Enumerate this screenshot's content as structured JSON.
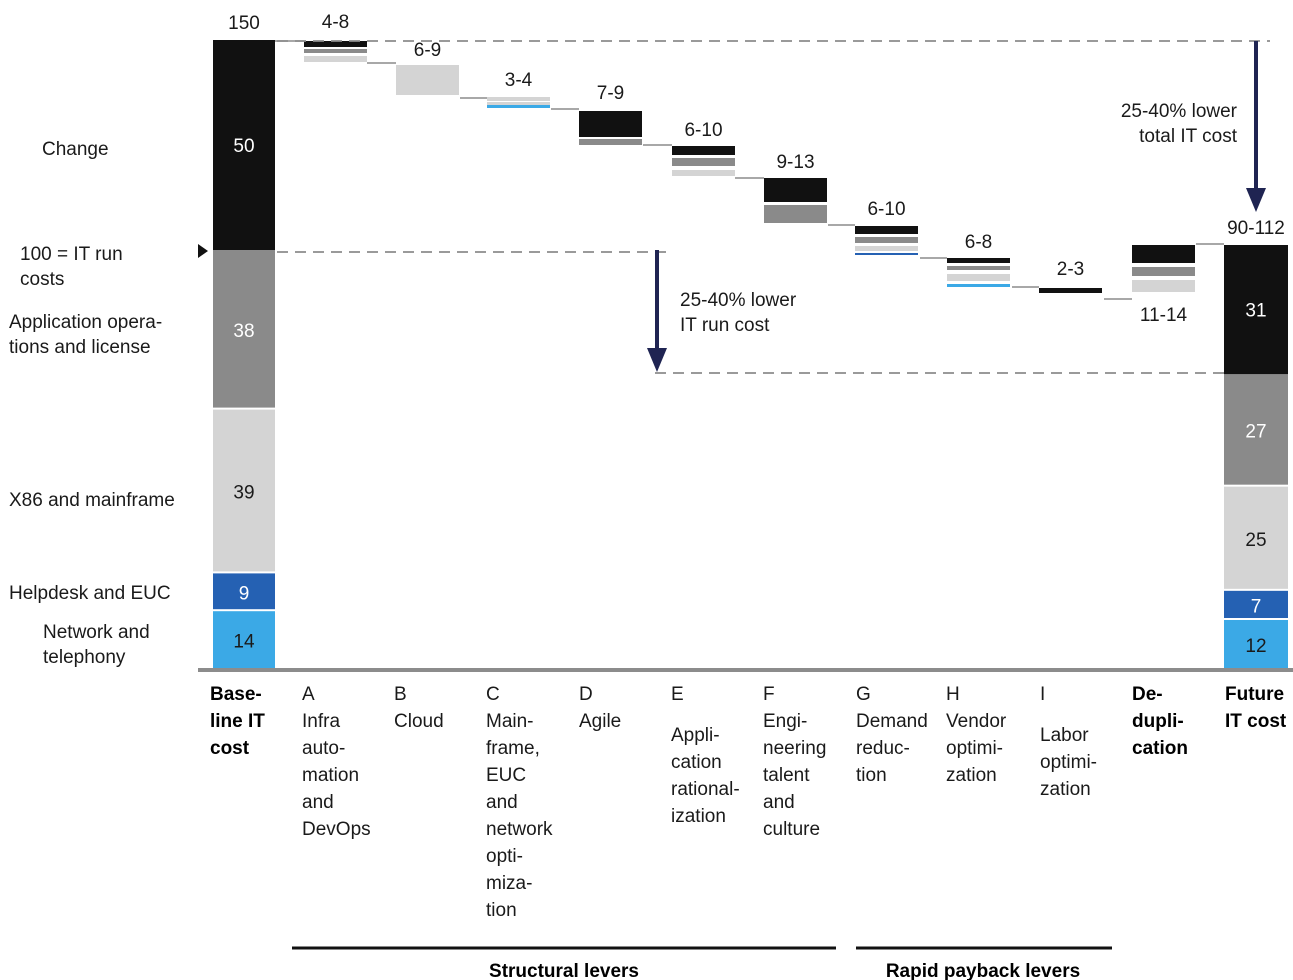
{
  "chart_data": {
    "type": "waterfall",
    "colors": {
      "change": "#111111",
      "app_ops": "#8a8a8a",
      "x86": "#d4d4d4",
      "helpdesk": "#2561b3",
      "network": "#3ba9e6",
      "axis": "#8c8c8c",
      "arrow": "#1f2452"
    },
    "segment_labels": {
      "change": "Change",
      "run_marker": "100 = IT run costs",
      "app_ops": "Application operations and license",
      "x86": "X86 and mainframe",
      "helpdesk": "Helpdesk and EUC",
      "network": "Network and telephony"
    },
    "baseline": {
      "total": "150",
      "segments": {
        "change": 50,
        "app_ops": 38,
        "x86": 39,
        "helpdesk": 9,
        "network": 14
      },
      "label": "Base-line IT cost"
    },
    "levers": [
      {
        "letter": "A",
        "name": "Infra automation and DevOps",
        "range": "4-8"
      },
      {
        "letter": "B",
        "name": "Cloud",
        "range": "6-9"
      },
      {
        "letter": "C",
        "name": "Mainframe, EUC and network optimization",
        "range": "3-4"
      },
      {
        "letter": "D",
        "name": "Agile",
        "range": "7-9"
      },
      {
        "letter": "E",
        "name": "Application rationalization",
        "range": "6-10"
      },
      {
        "letter": "F",
        "name": "Engineering talent and culture",
        "range": "9-13"
      },
      {
        "letter": "G",
        "name": "Demand reduction",
        "range": "6-10"
      },
      {
        "letter": "H",
        "name": "Vendor optimization",
        "range": "6-8"
      },
      {
        "letter": "I",
        "name": "Labor optimization",
        "range": "2-3"
      },
      {
        "letter": "",
        "name": "De-duplication",
        "range": "11-14"
      }
    ],
    "future": {
      "total": "90-112",
      "segments": {
        "change": 31,
        "app_ops": 27,
        "x86": 25,
        "helpdesk": 7,
        "network": 12
      },
      "label": "Future IT cost"
    },
    "annotations": {
      "total_reduction": "25-40% lower total IT cost",
      "run_reduction": "25-40% lower IT run cost"
    },
    "groups": [
      {
        "name": "Structural levers",
        "levers": [
          "A",
          "B",
          "C",
          "D",
          "E",
          "F"
        ]
      },
      {
        "name": "Rapid payback levers",
        "levers": [
          "G",
          "H",
          "I"
        ]
      }
    ]
  },
  "text": {
    "baseline_total": "150",
    "future_total": "90-112",
    "baseline_values": [
      "50",
      "38",
      "39",
      "9",
      "14"
    ],
    "future_values": [
      "31",
      "27",
      "25",
      "7",
      "12"
    ],
    "left_labels": {
      "change": [
        "Change"
      ],
      "run_marker": [
        "100 = IT run",
        "costs"
      ],
      "app_ops": [
        "Application opera-",
        "tions and license"
      ],
      "x86": [
        "X86 and mainframe"
      ],
      "helpdesk": [
        "Helpdesk and EUC"
      ],
      "network": [
        "Network and",
        "telephony"
      ]
    },
    "baseline_label": [
      "Base-",
      "line IT",
      "cost"
    ],
    "future_label": [
      "Future",
      "IT cost"
    ],
    "lever_labels": [
      {
        "letter": "A",
        "lines": [
          "Infra",
          "auto-",
          "mation",
          "and",
          "DevOps"
        ]
      },
      {
        "letter": "B",
        "lines": [
          "Cloud"
        ]
      },
      {
        "letter": "C",
        "lines": [
          "Main-",
          "frame,",
          "EUC",
          "and",
          "network",
          "opti-",
          "miza-",
          "tion"
        ]
      },
      {
        "letter": "D",
        "lines": [
          "Agile"
        ]
      },
      {
        "letter": "E",
        "lines": [
          "Appli-",
          "cation",
          "rational-",
          "ization"
        ]
      },
      {
        "letter": "F",
        "lines": [
          "Engi-",
          "neering",
          "talent",
          "and",
          "culture"
        ]
      },
      {
        "letter": "G",
        "lines": [
          "Demand",
          "reduc-",
          "tion"
        ]
      },
      {
        "letter": "H",
        "lines": [
          "Vendor",
          "optimi-",
          "zation"
        ]
      },
      {
        "letter": "I",
        "lines": [
          "Labor",
          "optimi-",
          "zation"
        ]
      }
    ],
    "dedup_label": [
      "De-",
      "dupli-",
      "cation"
    ],
    "total_reduction": [
      "25-40% lower",
      "total IT cost"
    ],
    "run_reduction": [
      "25-40% lower",
      "IT run cost"
    ],
    "structural": "Structural levers",
    "rapid": "Rapid payback levers"
  }
}
